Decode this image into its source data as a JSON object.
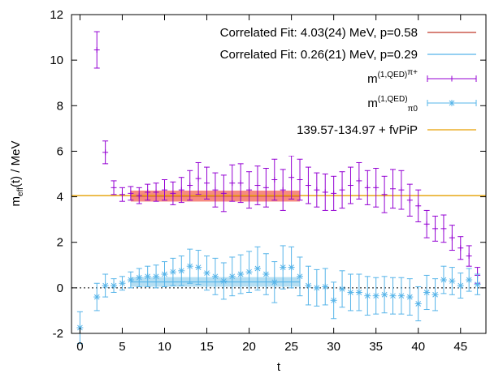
{
  "chart_data": {
    "type": "scatter",
    "xlabel": "t",
    "ylabel_main": "m",
    "ylabel_sub": "eff",
    "ylabel_rest": "(t) / MeV",
    "xlim": [
      -1,
      48
    ],
    "ylim": [
      -2,
      12
    ],
    "x_ticks": [
      "0",
      "5",
      "10",
      "15",
      "20",
      "25",
      "30",
      "35",
      "40",
      "45"
    ],
    "y_ticks": [
      "-2",
      "0",
      "2",
      "4",
      "6",
      "8",
      "10",
      "12"
    ],
    "grid": false,
    "legend_position": "top-right",
    "colors": {
      "fit1": "#c0392b",
      "fit1_band": "#f4766a",
      "fit2": "#56b4e9",
      "fit2_band": "#a8d8f0",
      "charged": "#9400d3",
      "neutral": "#56b4e9",
      "fvpip": "#e69f00",
      "zero_line": "#000000"
    },
    "legend": {
      "fit1": "Correlated Fit:  4.03(24) MeV, p=0.58",
      "fit2": "Correlated Fit:  0.26(21) MeV, p=0.29",
      "charged_main": "m",
      "charged_sup": "(1,QED)",
      "charged_sup2": "π+",
      "neutral_main": "m",
      "neutral_sup": "(1,QED)",
      "neutral_sub": "π0",
      "fvpip": "139.57-134.97 + fvPiP"
    },
    "fit_charged": {
      "value": 4.03,
      "err": 0.24,
      "t_range": [
        6,
        26
      ]
    },
    "fit_neutral": {
      "value": 0.26,
      "err": 0.21,
      "t_range": [
        6,
        26
      ]
    },
    "fvpip_value": 4.05,
    "series": [
      {
        "name": "m(1,QED) π+",
        "marker": "plus",
        "x": [
          2,
          3,
          4,
          5,
          6,
          7,
          8,
          9,
          10,
          11,
          12,
          13,
          14,
          15,
          16,
          17,
          18,
          19,
          20,
          21,
          22,
          23,
          24,
          25,
          26,
          27,
          28,
          29,
          30,
          31,
          32,
          33,
          34,
          35,
          36,
          37,
          38,
          39,
          40,
          41,
          42,
          43,
          44,
          45,
          46,
          47
        ],
        "y": [
          10.45,
          5.95,
          4.4,
          4.1,
          4.15,
          4.05,
          4.2,
          4.2,
          4.3,
          4.15,
          4.3,
          4.5,
          4.8,
          4.6,
          4.3,
          4.15,
          4.6,
          4.6,
          4.3,
          4.5,
          4.4,
          4.75,
          4.3,
          4.85,
          4.75,
          4.5,
          4.3,
          4.2,
          4.15,
          4.3,
          4.5,
          4.7,
          4.4,
          4.4,
          4.1,
          4.35,
          4.3,
          3.85,
          3.6,
          2.8,
          2.6,
          2.6,
          2.2,
          1.75,
          1.4,
          0.55
        ],
        "err": [
          0.8,
          0.5,
          0.3,
          0.3,
          0.3,
          0.35,
          0.35,
          0.4,
          0.45,
          0.5,
          0.55,
          0.65,
          0.7,
          0.7,
          0.75,
          0.8,
          0.8,
          0.85,
          0.8,
          0.85,
          0.85,
          0.9,
          0.9,
          0.95,
          0.9,
          0.8,
          0.75,
          0.8,
          0.75,
          0.8,
          0.8,
          0.8,
          0.75,
          0.85,
          0.8,
          0.85,
          0.85,
          0.7,
          0.7,
          0.6,
          0.55,
          0.6,
          0.55,
          0.5,
          0.45,
          0.35
        ]
      },
      {
        "name": "m(1,QED) π0",
        "marker": "star",
        "x": [
          0,
          2,
          3,
          4,
          5,
          6,
          7,
          8,
          9,
          10,
          11,
          12,
          13,
          14,
          15,
          16,
          17,
          18,
          19,
          20,
          21,
          22,
          23,
          24,
          25,
          26,
          27,
          28,
          29,
          30,
          31,
          32,
          33,
          34,
          35,
          36,
          37,
          38,
          39,
          40,
          41,
          42,
          43,
          44,
          45,
          46,
          47
        ],
        "y": [
          -1.75,
          -0.4,
          0.1,
          0.1,
          0.2,
          0.35,
          0.45,
          0.5,
          0.5,
          0.6,
          0.7,
          0.75,
          0.95,
          0.9,
          0.65,
          0.5,
          0.3,
          0.5,
          0.6,
          0.7,
          0.85,
          0.6,
          0.25,
          0.9,
          0.9,
          0.5,
          0.1,
          0.0,
          0.05,
          -0.55,
          -0.05,
          -0.2,
          -0.2,
          -0.35,
          -0.35,
          -0.3,
          -0.35,
          -0.35,
          -0.4,
          -0.7,
          -0.2,
          -0.3,
          0.35,
          0.3,
          0.1,
          0.35,
          0.15
        ],
        "err": [
          0.7,
          0.6,
          0.5,
          0.3,
          0.3,
          0.35,
          0.4,
          0.45,
          0.5,
          0.55,
          0.6,
          0.65,
          0.75,
          0.75,
          0.75,
          0.8,
          0.8,
          0.85,
          0.85,
          0.9,
          0.95,
          0.9,
          0.9,
          0.95,
          0.9,
          0.85,
          0.85,
          0.8,
          0.8,
          0.8,
          0.8,
          0.8,
          0.8,
          0.85,
          0.8,
          0.8,
          0.8,
          0.8,
          0.8,
          0.75,
          0.75,
          0.7,
          0.6,
          0.6,
          0.55,
          0.5,
          0.45
        ]
      }
    ]
  }
}
